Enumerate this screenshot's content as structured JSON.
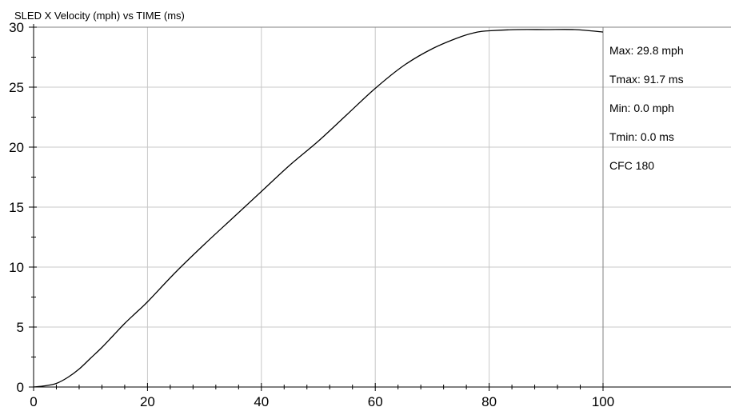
{
  "chart_data": {
    "type": "line",
    "title": "SLED X Velocity (mph) vs TIME (ms)",
    "xlabel": "",
    "ylabel": "",
    "xlim": [
      0,
      100
    ],
    "ylim": [
      0,
      30
    ],
    "x_ticks": [
      0,
      20,
      40,
      60,
      80,
      100
    ],
    "x_tick_labels": [
      "0",
      "20",
      "40",
      "60",
      "80",
      "100"
    ],
    "y_ticks": [
      0,
      5,
      10,
      15,
      20,
      25,
      30
    ],
    "y_tick_labels": [
      "0",
      "5",
      "10",
      "15",
      "20",
      "25",
      "30"
    ],
    "grid": true,
    "series": [
      {
        "x": [
          0,
          2,
          4,
          6,
          8,
          10,
          12,
          14,
          16,
          18,
          20,
          25,
          30,
          35,
          40,
          45,
          50,
          55,
          60,
          65,
          70,
          75,
          78,
          80,
          85,
          90,
          95,
          100
        ],
        "y": [
          0.0,
          0.1,
          0.3,
          0.8,
          1.5,
          2.4,
          3.3,
          4.3,
          5.3,
          6.2,
          7.1,
          9.6,
          11.9,
          14.1,
          16.3,
          18.5,
          20.5,
          22.7,
          24.9,
          26.8,
          28.2,
          29.2,
          29.6,
          29.7,
          29.8,
          29.8,
          29.8,
          29.6
        ],
        "color": "#000000"
      }
    ],
    "annotations": [
      "Max: 29.8 mph",
      "Tmax: 91.7 ms",
      "Min: 0.0 mph",
      "Tmin: 0.0 ms",
      "CFC 180"
    ]
  }
}
